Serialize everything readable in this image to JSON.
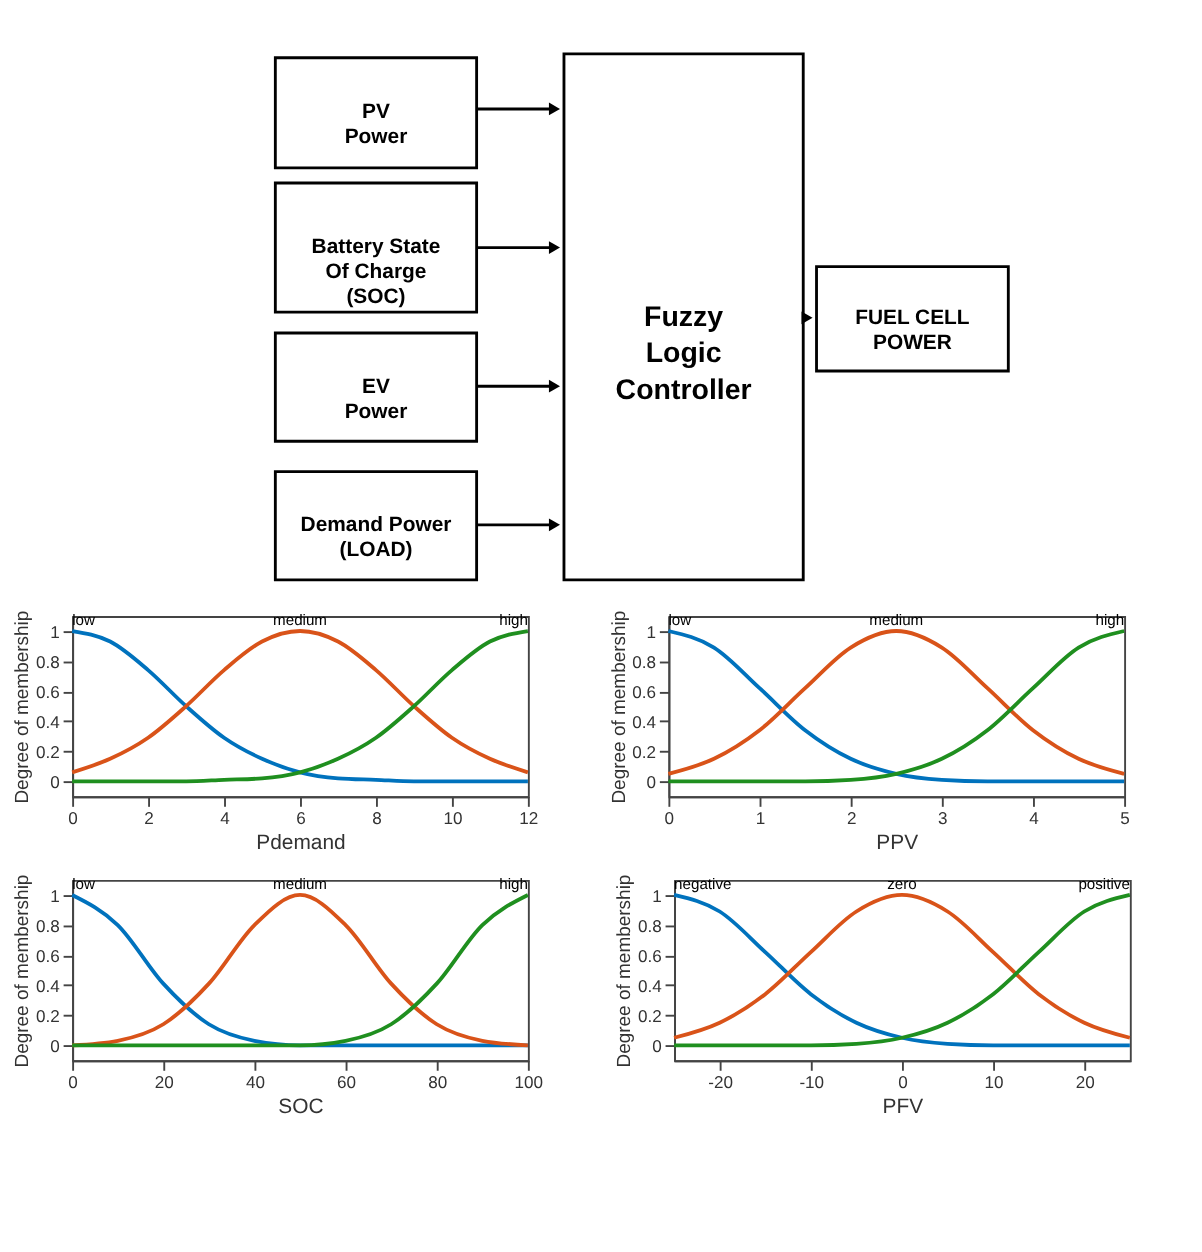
{
  "chart_data": [
    {
      "type": "other",
      "annotations": [
        "PV\nPower",
        "Battery State\nOf Charge\n(SOC)",
        "EV\nPower",
        "Demand Power\n(LOAD)",
        "Fuzzy\n\nLogic\n\nController",
        "FUEL CELL\nPOWER"
      ]
    },
    {
      "type": "line",
      "xlabel": "Pdemand",
      "ylabel": "Degree of membership",
      "xlim": [
        0,
        12
      ],
      "xticks": [
        0,
        2,
        4,
        6,
        8,
        10,
        12
      ],
      "ylim": [
        -0.1,
        1.1
      ],
      "yticks": [
        0,
        0.2,
        0.4,
        0.6,
        0.8,
        1
      ],
      "grid": false,
      "legend": false,
      "marker": "none",
      "line_style": "solid",
      "x": [
        0,
        1,
        2,
        3,
        4,
        5,
        6,
        7,
        8,
        9,
        10,
        11,
        12
      ],
      "series": [
        {
          "name": "low",
          "color": "#0072bd",
          "values": [
            1,
            0.93,
            0.74,
            0.5,
            0.29,
            0.15,
            0.06,
            0.02,
            0.01,
            0,
            0,
            0,
            0
          ]
        },
        {
          "name": "medium",
          "color": "#d95319",
          "values": [
            0.06,
            0.15,
            0.29,
            0.5,
            0.74,
            0.93,
            1,
            0.93,
            0.74,
            0.5,
            0.29,
            0.15,
            0.06
          ]
        },
        {
          "name": "high",
          "color": "#1f8f1f",
          "values": [
            0,
            0,
            0,
            0,
            0.01,
            0.02,
            0.06,
            0.15,
            0.29,
            0.5,
            0.74,
            0.93,
            1
          ]
        }
      ]
    },
    {
      "type": "line",
      "xlabel": "PPV",
      "ylabel": "Degree of membership",
      "xlim": [
        0,
        5
      ],
      "xticks": [
        0,
        1,
        2,
        3,
        4,
        5
      ],
      "ylim": [
        -0.1,
        1.1
      ],
      "yticks": [
        0,
        0.2,
        0.4,
        0.6,
        0.8,
        1
      ],
      "grid": false,
      "legend": false,
      "marker": "none",
      "line_style": "solid",
      "x": [
        0,
        0.5,
        1,
        1.5,
        2,
        2.5,
        3,
        3.5,
        4,
        4.5,
        5
      ],
      "series": [
        {
          "name": "low",
          "color": "#0072bd",
          "values": [
            1,
            0.89,
            0.62,
            0.34,
            0.15,
            0.05,
            0.01,
            0,
            0,
            0,
            0
          ]
        },
        {
          "name": "medium",
          "color": "#d95319",
          "values": [
            0.05,
            0.15,
            0.34,
            0.62,
            0.89,
            1,
            0.89,
            0.62,
            0.34,
            0.15,
            0.05
          ]
        },
        {
          "name": "high",
          "color": "#1f8f1f",
          "values": [
            0,
            0,
            0,
            0,
            0.01,
            0.05,
            0.15,
            0.34,
            0.62,
            0.89,
            1
          ]
        }
      ]
    },
    {
      "type": "line",
      "xlabel": "SOC",
      "ylabel": "Degree of membership",
      "xlim": [
        0,
        100
      ],
      "xticks": [
        0,
        20,
        40,
        60,
        80,
        100
      ],
      "ylim": [
        -0.1,
        1.1
      ],
      "yticks": [
        0,
        0.2,
        0.4,
        0.6,
        0.8,
        1
      ],
      "grid": false,
      "legend": false,
      "marker": "none",
      "line_style": "solid",
      "x": [
        0,
        10,
        20,
        30,
        40,
        50,
        60,
        70,
        80,
        90,
        100
      ],
      "series": [
        {
          "name": "low",
          "color": "#0072bd",
          "values": [
            1,
            0.8,
            0.41,
            0.14,
            0.03,
            0,
            0,
            0,
            0,
            0,
            0
          ]
        },
        {
          "name": "medium",
          "color": "#d95319",
          "values": [
            0,
            0.03,
            0.14,
            0.41,
            0.8,
            1,
            0.8,
            0.41,
            0.14,
            0.03,
            0
          ]
        },
        {
          "name": "high",
          "color": "#1f8f1f",
          "values": [
            0,
            0,
            0,
            0,
            0,
            0,
            0.03,
            0.14,
            0.41,
            0.8,
            1
          ]
        }
      ]
    },
    {
      "type": "line",
      "xlabel": "PFV",
      "ylabel": "Degree of membership",
      "xlim": [
        -25,
        25
      ],
      "xticks": [
        -20,
        -10,
        0,
        10,
        20
      ],
      "ylim": [
        -0.1,
        1.1
      ],
      "yticks": [
        0,
        0.2,
        0.4,
        0.6,
        0.8,
        1
      ],
      "grid": false,
      "legend": false,
      "marker": "none",
      "line_style": "solid",
      "x": [
        -25,
        -20,
        -15,
        -10,
        -5,
        0,
        5,
        10,
        15,
        20,
        25
      ],
      "series": [
        {
          "name": "negative",
          "color": "#0072bd",
          "values": [
            1,
            0.89,
            0.62,
            0.34,
            0.15,
            0.05,
            0.01,
            0,
            0,
            0,
            0
          ]
        },
        {
          "name": "zero",
          "color": "#d95319",
          "values": [
            0.05,
            0.15,
            0.34,
            0.62,
            0.89,
            1,
            0.89,
            0.62,
            0.34,
            0.15,
            0.05
          ]
        },
        {
          "name": "positive",
          "color": "#1f8f1f",
          "values": [
            0,
            0,
            0,
            0,
            0.01,
            0.05,
            0.15,
            0.34,
            0.62,
            0.89,
            1
          ]
        }
      ]
    }
  ]
}
